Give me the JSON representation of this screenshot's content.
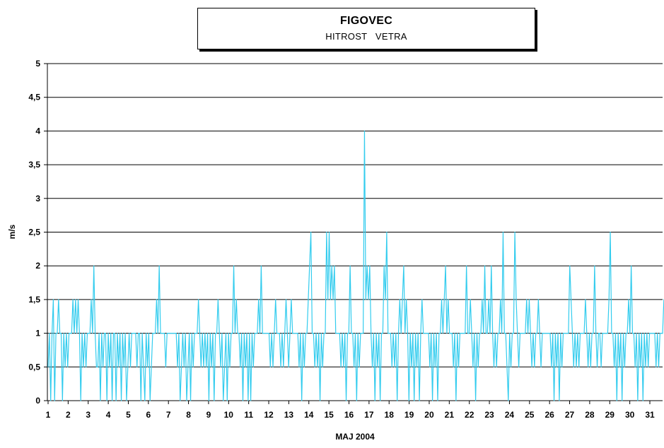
{
  "header": {
    "title": "FIGOVEC",
    "subtitle": "HITROST   VETRA"
  },
  "chart_data": {
    "type": "line",
    "title": "FIGOVEC",
    "subtitle": "HITROST   VETRA",
    "xlabel": "MAJ  2004",
    "ylabel": "m/s",
    "ylim": [
      0,
      5
    ],
    "xlim": [
      1,
      31.7
    ],
    "yticks": [
      "0",
      "0,5",
      "1",
      "1,5",
      "2",
      "2,5",
      "3",
      "3,5",
      "4",
      "4,5",
      "5"
    ],
    "xticks": [
      "1",
      "2",
      "3",
      "4",
      "5",
      "6",
      "7",
      "8",
      "9",
      "10",
      "11",
      "12",
      "13",
      "14",
      "15",
      "16",
      "17",
      "18",
      "19",
      "20",
      "21",
      "22",
      "23",
      "24",
      "25",
      "26",
      "27",
      "28",
      "29",
      "30",
      "31"
    ],
    "grid": true,
    "legend": "none",
    "series_color": "#33ccee",
    "series": [
      {
        "values": [
          0.5,
          1,
          0,
          1,
          1.5,
          0,
          1,
          1,
          1.5,
          1,
          1,
          0,
          1,
          0.5,
          1,
          0.5,
          1,
          1,
          1,
          1.5,
          1,
          1.5,
          1,
          1.5,
          1,
          0,
          1,
          0.5,
          1,
          0.5,
          1,
          1,
          1,
          1.5,
          1,
          2,
          1,
          0.5,
          0.5,
          1,
          0,
          1,
          0.5,
          1,
          1,
          0,
          1,
          0.5,
          1,
          0,
          1,
          1,
          0,
          1,
          0.5,
          1,
          0,
          1,
          0.5,
          1,
          0,
          0.5,
          1,
          0.5,
          1,
          1,
          1,
          1,
          0.5,
          1,
          1,
          0,
          1,
          0.5,
          0,
          1,
          0.5,
          1,
          0,
          0.5,
          1,
          1,
          1,
          1.5,
          1,
          2,
          1,
          1,
          1,
          1,
          0.5,
          1,
          1,
          1,
          1,
          1,
          1,
          1,
          1,
          0.5,
          1,
          0,
          0.5,
          1,
          0.5,
          1,
          0,
          0.5,
          1,
          0,
          1,
          0.5,
          1,
          1,
          1,
          1.5,
          1,
          0.5,
          1,
          0.5,
          1,
          0.5,
          1,
          0,
          1,
          0.5,
          1,
          0,
          1,
          1,
          1.5,
          1,
          0.5,
          1,
          0,
          0.5,
          1,
          0,
          1,
          0.5,
          1,
          1,
          2,
          1,
          1.5,
          1,
          1,
          0.5,
          1,
          0,
          1,
          0.5,
          1,
          0,
          1,
          0,
          1,
          0.5,
          1,
          1,
          1,
          1.5,
          1,
          2,
          1,
          1,
          1,
          1,
          1,
          1,
          0.5,
          1,
          0.5,
          1,
          1.5,
          1,
          1,
          1,
          0.5,
          1,
          0.5,
          1,
          1.5,
          1,
          0.5,
          1,
          1.5,
          1,
          1,
          1,
          1,
          1,
          0.5,
          1,
          0,
          1,
          0.5,
          1,
          1,
          1.5,
          2,
          2.5,
          1,
          1,
          0.5,
          1,
          0.5,
          1,
          0,
          1,
          0.5,
          1,
          1,
          2.5,
          1.5,
          2.5,
          1.5,
          2,
          1.5,
          2,
          1,
          1,
          1,
          1,
          0.5,
          1,
          0.5,
          1,
          0,
          1,
          1,
          2,
          1,
          1,
          0.5,
          1,
          0,
          1,
          0.5,
          1,
          1,
          1,
          4,
          1.5,
          2,
          1.5,
          2,
          1,
          0.5,
          1,
          0,
          1,
          0.5,
          1,
          0,
          1,
          1,
          2,
          1.5,
          2.5,
          1,
          1,
          1,
          0.5,
          1,
          0.5,
          1,
          0,
          1,
          1.5,
          1,
          1.5,
          2,
          1,
          1.5,
          1,
          0,
          1,
          0.5,
          1,
          0,
          1,
          0.5,
          1,
          0,
          1,
          1.5,
          1,
          1,
          1,
          1,
          1,
          0.5,
          1,
          0,
          1,
          0.5,
          1,
          0,
          1,
          1,
          1.5,
          1,
          1.5,
          2,
          1,
          1.5,
          1,
          1,
          1,
          0.5,
          1,
          0,
          1,
          0.5,
          1,
          1,
          1,
          1,
          1,
          2,
          1,
          1,
          1.5,
          1,
          0.5,
          1,
          0,
          1,
          0.5,
          1,
          1,
          1.5,
          1,
          2,
          1,
          1,
          1.5,
          1,
          2,
          1,
          0.5,
          1,
          0.5,
          1,
          1,
          1.5,
          1,
          2.5,
          1,
          1,
          0.5,
          0,
          1,
          0.5,
          1,
          1,
          2.5,
          1.5,
          1,
          0.5,
          1,
          1,
          1,
          1,
          1,
          1.5,
          1,
          1.5,
          1,
          0.5,
          1,
          0.5,
          1,
          1,
          1.5,
          1,
          0.5,
          1,
          1,
          1,
          1,
          1,
          1,
          1,
          0.5,
          1,
          0,
          1,
          0.5,
          1,
          0,
          1,
          0.5,
          1,
          1,
          1,
          1,
          1,
          2,
          1.5,
          1,
          0.5,
          1,
          0.5,
          1,
          0.5,
          1,
          1,
          1,
          1,
          1.5,
          1,
          0.5,
          1,
          0.5,
          1,
          1,
          2,
          1,
          0.5,
          1,
          1,
          0.5,
          1,
          1,
          1,
          1,
          1,
          1.5,
          2.5,
          1,
          1,
          0.5,
          1,
          0,
          1,
          0.5,
          1,
          0,
          1,
          0.5,
          1,
          1,
          1.5,
          1,
          2,
          1,
          1,
          0.5,
          1,
          0,
          1,
          0.5,
          1,
          0,
          1,
          0.5,
          1,
          0.5,
          1,
          1,
          1,
          1,
          1,
          0.5,
          1,
          0.5,
          1,
          1,
          1,
          1.5
        ]
      }
    ]
  }
}
